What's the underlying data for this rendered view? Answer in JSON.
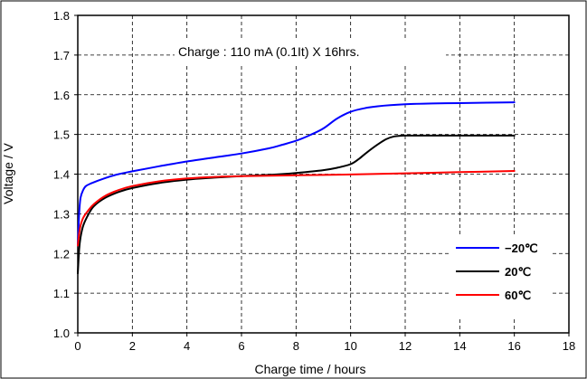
{
  "chart_data": {
    "type": "line",
    "title": "",
    "annotation": "Charge : 110 mA (0.1It) X 16hrs.",
    "xlabel": "Charge time / hours",
    "ylabel": "Voltage / V",
    "xlim": [
      0,
      18
    ],
    "ylim": [
      1.0,
      1.8
    ],
    "xticks": [
      0,
      2,
      4,
      6,
      8,
      10,
      12,
      14,
      16,
      18
    ],
    "yticks": [
      1.0,
      1.1,
      1.2,
      1.3,
      1.4,
      1.5,
      1.6,
      1.7,
      1.8
    ],
    "xtick_labels": [
      "0",
      "2",
      "4",
      "6",
      "8",
      "10",
      "12",
      "14",
      "16",
      "18"
    ],
    "ytick_labels": [
      "1.0",
      "1.1",
      "1.2",
      "1.3",
      "1.4",
      "1.5",
      "1.6",
      "1.7",
      "1.8"
    ],
    "grid": true,
    "legend_position": "bottom-right",
    "series": [
      {
        "name": "−20℃",
        "color": "#0000ff",
        "x": [
          0,
          0.05,
          0.1,
          0.2,
          0.3,
          0.5,
          1,
          1.5,
          2,
          3,
          4,
          5,
          6,
          7,
          7.5,
          8,
          8.5,
          9,
          9.5,
          10,
          10.5,
          11,
          12,
          13,
          14,
          15,
          16
        ],
        "y": [
          1.22,
          1.3,
          1.34,
          1.36,
          1.37,
          1.377,
          1.39,
          1.4,
          1.407,
          1.42,
          1.432,
          1.442,
          1.452,
          1.465,
          1.474,
          1.484,
          1.498,
          1.515,
          1.54,
          1.557,
          1.566,
          1.571,
          1.576,
          1.578,
          1.579,
          1.58,
          1.581
        ]
      },
      {
        "name": "20℃",
        "color": "#000000",
        "x": [
          0,
          0.05,
          0.1,
          0.2,
          0.4,
          0.6,
          1,
          1.5,
          2,
          3,
          4,
          5,
          6,
          7,
          8,
          9,
          9.5,
          10,
          10.3,
          10.6,
          11,
          11.3,
          11.6,
          12,
          13,
          14,
          15,
          16
        ],
        "y": [
          1.15,
          1.21,
          1.24,
          1.27,
          1.3,
          1.32,
          1.34,
          1.355,
          1.365,
          1.378,
          1.386,
          1.391,
          1.395,
          1.398,
          1.403,
          1.41,
          1.416,
          1.425,
          1.438,
          1.455,
          1.475,
          1.488,
          1.495,
          1.497,
          1.497,
          1.497,
          1.497,
          1.497
        ]
      },
      {
        "name": "60℃",
        "color": "#ff0000",
        "x": [
          0,
          0.05,
          0.1,
          0.2,
          0.4,
          0.6,
          1,
          1.5,
          2,
          3,
          4,
          5,
          6,
          8,
          10,
          12,
          14,
          16
        ],
        "y": [
          1.22,
          1.25,
          1.27,
          1.29,
          1.31,
          1.325,
          1.345,
          1.36,
          1.37,
          1.382,
          1.389,
          1.393,
          1.395,
          1.397,
          1.399,
          1.402,
          1.405,
          1.408
        ]
      }
    ]
  }
}
